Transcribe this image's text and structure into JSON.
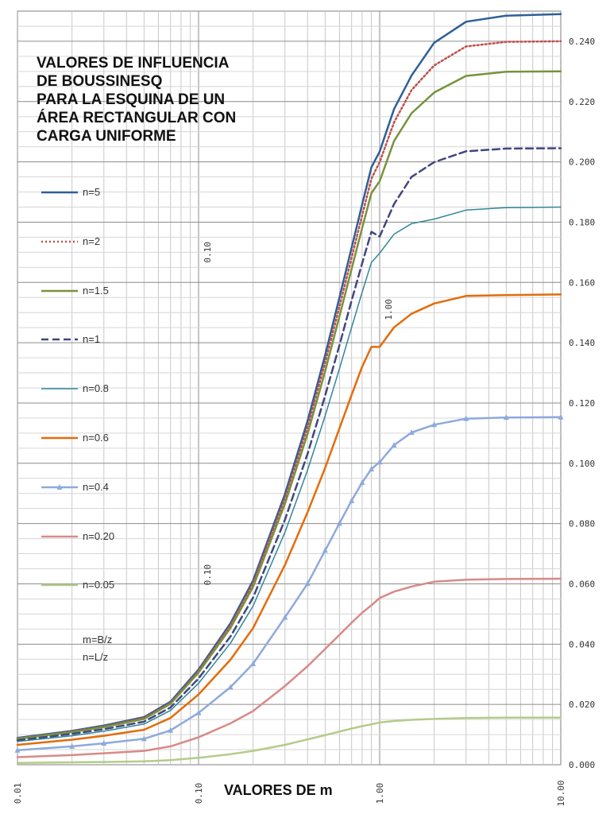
{
  "title_lines": [
    "VALORES DE INFLUENCIA",
    "DE BOUSSINESQ",
    "PARA LA ESQUINA DE UN",
    "ÁREA RECTANGULAR CON",
    "CARGA UNIFORME"
  ],
  "notes": [
    "m=B/z",
    "n=L/z"
  ],
  "chart_data": {
    "type": "line",
    "title": "VALORES DE INFLUENCIA DE BOUSSINESQ PARA LA ESQUINA DE UN ÁREA RECTANGULAR CON CARGA UNIFORME",
    "xlabel": "VALORES DE   m",
    "ylabel": "",
    "x_scale": "log",
    "xlim": [
      0.01,
      10
    ],
    "ylim": [
      0,
      0.25
    ],
    "grid": true,
    "legend_position": "left",
    "x_tick_labels": [
      "0.01",
      "0.10",
      "1.00",
      "10.00"
    ],
    "y_tick_labels": [
      "0.000",
      "0.020",
      "0.040",
      "0.060",
      "0.080",
      "0.100",
      "0.120",
      "0.140",
      "0.160",
      "0.180",
      "0.200",
      "0.220",
      "0.240"
    ],
    "annotations": [
      "0.10",
      "1.00",
      "0.10"
    ],
    "x": [
      0.01,
      0.02,
      0.03,
      0.05,
      0.07,
      0.1,
      0.15,
      0.2,
      0.3,
      0.4,
      0.5,
      0.6,
      0.7,
      0.8,
      0.9,
      1.0,
      1.2,
      1.5,
      2.0,
      3.0,
      5.0,
      10.0
    ],
    "series": [
      {
        "name": "n=5",
        "color": "#2e5f97",
        "style": "solid",
        "values": [
          0.0089,
          0.0112,
          0.013,
          0.0158,
          0.0209,
          0.0316,
          0.0469,
          0.0611,
          0.0898,
          0.1141,
          0.1359,
          0.155,
          0.1715,
          0.1858,
          0.1982,
          0.2034,
          0.2175,
          0.2286,
          0.2395,
          0.2465,
          0.2485,
          0.249
        ]
      },
      {
        "name": "n=2",
        "color": "#c0504d",
        "style": "dotted",
        "values": [
          0.0087,
          0.011,
          0.0127,
          0.0155,
          0.0205,
          0.0311,
          0.0461,
          0.0601,
          0.0883,
          0.1121,
          0.1334,
          0.152,
          0.1682,
          0.1822,
          0.1944,
          0.1999,
          0.2131,
          0.2238,
          0.232,
          0.2383,
          0.2398,
          0.24
        ]
      },
      {
        "name": "n=1.5",
        "color": "#77933c",
        "style": "solid",
        "values": [
          0.0086,
          0.0108,
          0.0125,
          0.0152,
          0.0202,
          0.0306,
          0.0453,
          0.059,
          0.0866,
          0.1098,
          0.1306,
          0.1488,
          0.1645,
          0.178,
          0.1896,
          0.1936,
          0.2069,
          0.2161,
          0.223,
          0.2285,
          0.2299,
          0.23
        ]
      },
      {
        "name": "n=1",
        "color": "#40477f",
        "style": "dashed",
        "values": [
          0.0081,
          0.0102,
          0.0118,
          0.0143,
          0.019,
          0.0286,
          0.0425,
          0.0554,
          0.0813,
          0.1032,
          0.1225,
          0.1392,
          0.154,
          0.1663,
          0.1768,
          0.1752,
          0.186,
          0.195,
          0.1999,
          0.2035,
          0.2044,
          0.2045
        ]
      },
      {
        "name": "n=0.8",
        "color": "#31859c",
        "style": "solid",
        "values": [
          0.0077,
          0.0096,
          0.0111,
          0.0135,
          0.018,
          0.027,
          0.0403,
          0.0526,
          0.0771,
          0.0978,
          0.1158,
          0.1314,
          0.1451,
          0.1567,
          0.1666,
          0.1697,
          0.176,
          0.1795,
          0.181,
          0.184,
          0.1848,
          0.185
        ]
      },
      {
        "name": "n=0.6",
        "color": "#e46c0a",
        "style": "solid",
        "values": [
          0.0066,
          0.0083,
          0.0096,
          0.0116,
          0.0155,
          0.0233,
          0.0348,
          0.0453,
          0.0663,
          0.0838,
          0.0985,
          0.1116,
          0.1227,
          0.132,
          0.1386,
          0.1386,
          0.1451,
          0.1496,
          0.153,
          0.1555,
          0.1558,
          0.156
        ]
      },
      {
        "name": "n=0.4",
        "color": "#8ea9db",
        "style": "solid",
        "marker": "triangle",
        "values": [
          0.0048,
          0.0061,
          0.0071,
          0.0086,
          0.0114,
          0.0172,
          0.0257,
          0.0335,
          0.0489,
          0.0601,
          0.0711,
          0.0801,
          0.0876,
          0.0936,
          0.0981,
          0.1004,
          0.106,
          0.1102,
          0.1128,
          0.1148,
          0.1152,
          0.1153
        ]
      },
      {
        "name": "n=0.20",
        "color": "#d88a88",
        "style": "solid",
        "values": [
          0.0025,
          0.0032,
          0.0038,
          0.0046,
          0.0061,
          0.0091,
          0.0137,
          0.0178,
          0.0261,
          0.0327,
          0.0384,
          0.0431,
          0.0471,
          0.0504,
          0.0529,
          0.0553,
          0.0574,
          0.0591,
          0.0607,
          0.0614,
          0.0616,
          0.0617
        ]
      },
      {
        "name": "n=0.05",
        "color": "#b3cc8a",
        "style": "solid",
        "values": [
          0.0006,
          0.0008,
          0.0009,
          0.0011,
          0.0015,
          0.0023,
          0.0035,
          0.0046,
          0.0066,
          0.0084,
          0.0098,
          0.011,
          0.012,
          0.0128,
          0.0134,
          0.014,
          0.0145,
          0.0149,
          0.0152,
          0.0155,
          0.0156,
          0.0156
        ]
      }
    ]
  }
}
